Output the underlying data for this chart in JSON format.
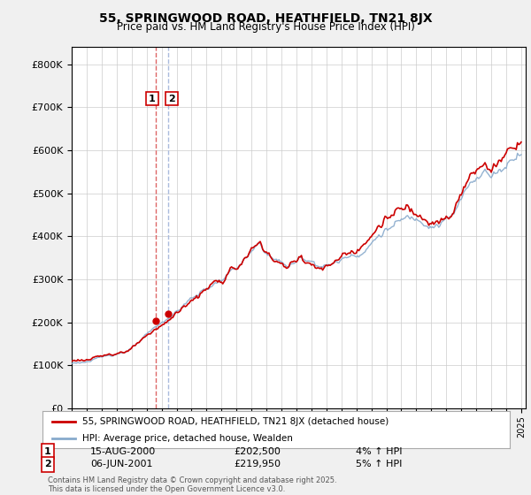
{
  "title": "55, SPRINGWOOD ROAD, HEATHFIELD, TN21 8JX",
  "subtitle": "Price paid vs. HM Land Registry's House Price Index (HPI)",
  "legend_label1": "55, SPRINGWOOD ROAD, HEATHFIELD, TN21 8JX (detached house)",
  "legend_label2": "HPI: Average price, detached house, Wealden",
  "annotation1_date": "15-AUG-2000",
  "annotation1_price": "£202,500",
  "annotation1_hpi": "4% ↑ HPI",
  "annotation2_date": "06-JUN-2001",
  "annotation2_price": "£219,950",
  "annotation2_hpi": "5% ↑ HPI",
  "footer": "Contains HM Land Registry data © Crown copyright and database right 2025.\nThis data is licensed under the Open Government Licence v3.0.",
  "line1_color": "#cc0000",
  "line2_color": "#88aacc",
  "vline1_color": "#dd6666",
  "vline2_color": "#aabbdd",
  "background_color": "#f0f0f0",
  "plot_bg_color": "#ffffff",
  "ylim": [
    0,
    840000
  ],
  "yticks": [
    0,
    100000,
    200000,
    300000,
    400000,
    500000,
    600000,
    700000,
    800000
  ],
  "sale1_x": 2000.62,
  "sale1_y": 202500,
  "sale2_x": 2001.43,
  "sale2_y": 219950,
  "xlim_start": 1995,
  "xlim_end": 2025.3
}
